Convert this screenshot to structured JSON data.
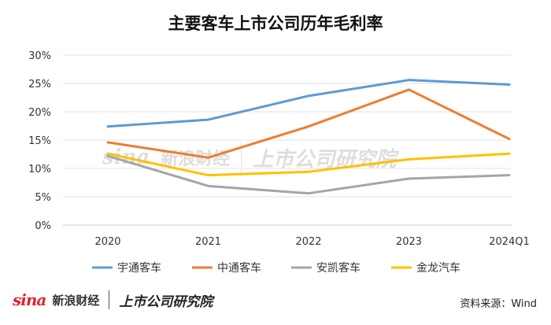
{
  "chart_data": {
    "type": "line",
    "title": "主要客车上市公司历年毛利率",
    "categories": [
      "2020",
      "2021",
      "2022",
      "2023",
      "2024Q1"
    ],
    "yticks": [
      "0%",
      "5%",
      "10%",
      "15%",
      "20%",
      "25%",
      "30%"
    ],
    "ylim": [
      0,
      30
    ],
    "series": [
      {
        "name": "宇通客车",
        "color": "#5b9bd5",
        "values": [
          17.4,
          18.6,
          22.8,
          25.6,
          24.8
        ]
      },
      {
        "name": "中通客车",
        "color": "#ed7d31",
        "values": [
          14.6,
          11.9,
          17.4,
          23.9,
          15.2
        ]
      },
      {
        "name": "安凯客车",
        "color": "#a5a5a5",
        "values": [
          12.2,
          6.9,
          5.6,
          8.2,
          8.8
        ]
      },
      {
        "name": "金龙汽车",
        "color": "#ffc000",
        "values": [
          12.6,
          8.8,
          9.4,
          11.6,
          12.6
        ]
      }
    ]
  },
  "brand": {
    "sina_logo": "sina",
    "sina_cn": "新浪财经",
    "right": "上市公司研究院"
  },
  "source": "资料来源：Wind"
}
